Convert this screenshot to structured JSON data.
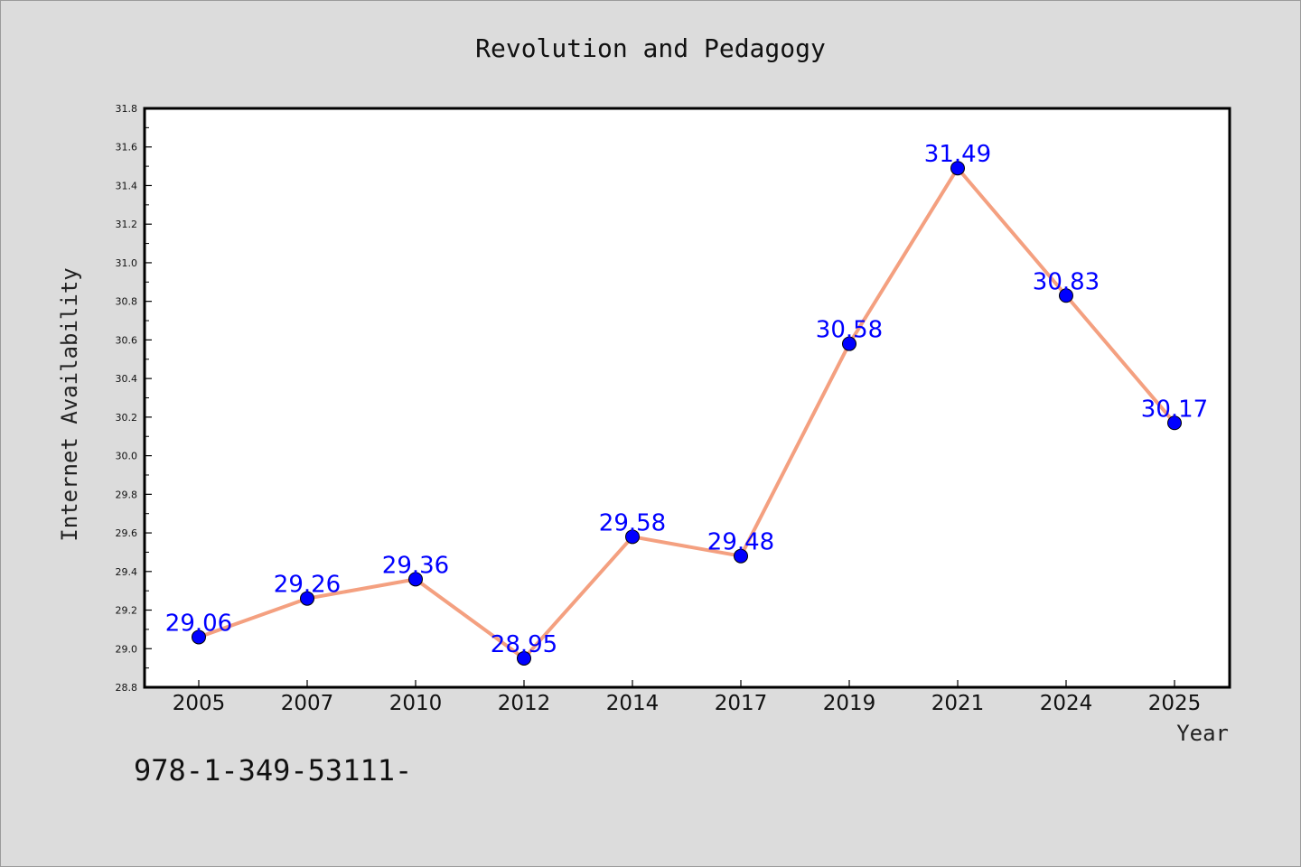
{
  "chart_data": {
    "type": "line",
    "title": "Revolution and Pedagogy",
    "xlabel": "Year",
    "ylabel": "Internet Availability",
    "categories": [
      "2005",
      "2007",
      "2010",
      "2012",
      "2014",
      "2017",
      "2019",
      "2021",
      "2024",
      "2025"
    ],
    "series": [
      {
        "values": [
          29.06,
          29.26,
          29.36,
          28.95,
          29.58,
          29.48,
          30.58,
          31.49,
          30.83,
          30.17
        ]
      }
    ],
    "data_labels": [
      "29.06",
      "29.26",
      "29.36",
      "28.95",
      "29.58",
      "29.48",
      "30.58",
      "31.49",
      "30.83",
      "30.17"
    ],
    "ylim": [
      28.8,
      31.8
    ],
    "yticks": [
      "28.8",
      "29.0",
      "29.2",
      "29.4",
      "29.6",
      "29.8",
      "30.0",
      "30.2",
      "30.4",
      "30.6",
      "30.8",
      "31.0",
      "31.2",
      "31.4",
      "31.6",
      "31.8"
    ],
    "grid": false,
    "line_color": "#f4a080",
    "marker_color": "#0000ff",
    "label_color": "#0000ff",
    "plot_background": "#ffffff",
    "page_background": "#dcdcdc"
  },
  "footer": {
    "text": "978-1-349-53111-"
  }
}
